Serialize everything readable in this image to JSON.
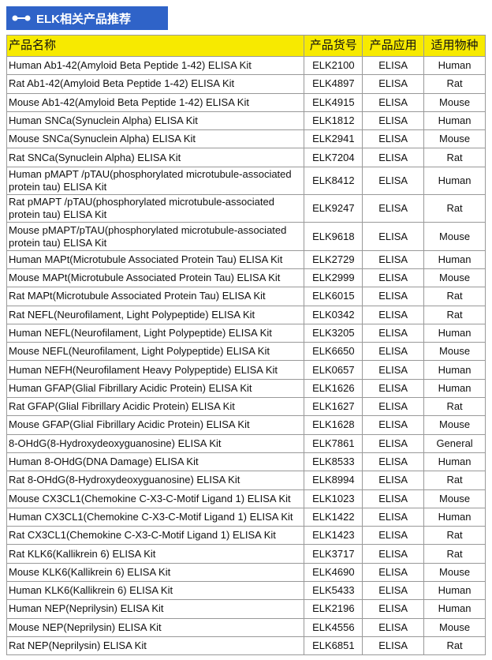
{
  "header": {
    "title": "ELK相关产品推荐"
  },
  "table": {
    "columns": [
      "产品名称",
      "产品货号",
      "产品应用",
      "适用物种"
    ],
    "rows": [
      [
        "Human Ab1-42(Amyloid Beta Peptide 1-42) ELISA Kit",
        "ELK2100",
        "ELISA",
        "Human"
      ],
      [
        "Rat Ab1-42(Amyloid Beta Peptide 1-42) ELISA Kit",
        "ELK4897",
        "ELISA",
        "Rat"
      ],
      [
        "Mouse Ab1-42(Amyloid Beta Peptide 1-42) ELISA Kit",
        "ELK4915",
        "ELISA",
        "Mouse"
      ],
      [
        "Human SNCa(Synuclein Alpha) ELISA Kit",
        "ELK1812",
        "ELISA",
        "Human"
      ],
      [
        "Mouse SNCa(Synuclein Alpha) ELISA Kit",
        "ELK2941",
        "ELISA",
        "Mouse"
      ],
      [
        "Rat SNCa(Synuclein Alpha) ELISA Kit",
        "ELK7204",
        "ELISA",
        "Rat"
      ],
      [
        "Human pMAPT /pTAU(phosphorylated microtubule-associated protein tau) ELISA Kit",
        "ELK8412",
        "ELISA",
        "Human"
      ],
      [
        "Rat pMAPT /pTAU(phosphorylated microtubule-associated protein tau) ELISA Kit",
        "ELK9247",
        "ELISA",
        "Rat"
      ],
      [
        "Mouse pMAPT/pTAU(phosphorylated microtubule-associated protein tau) ELISA Kit",
        "ELK9618",
        "ELISA",
        "Mouse"
      ],
      [
        "Human MAPt(Microtubule Associated Protein Tau) ELISA Kit",
        "ELK2729",
        "ELISA",
        "Human"
      ],
      [
        "Mouse MAPt(Microtubule Associated Protein Tau) ELISA Kit",
        "ELK2999",
        "ELISA",
        "Mouse"
      ],
      [
        "Rat MAPt(Microtubule Associated Protein Tau) ELISA Kit",
        "ELK6015",
        "ELISA",
        "Rat"
      ],
      [
        "Rat NEFL(Neurofilament, Light Polypeptide) ELISA Kit",
        "ELK0342",
        "ELISA",
        "Rat"
      ],
      [
        "Human NEFL(Neurofilament, Light Polypeptide) ELISA Kit",
        "ELK3205",
        "ELISA",
        "Human"
      ],
      [
        "Mouse NEFL(Neurofilament, Light Polypeptide) ELISA Kit",
        "ELK6650",
        "ELISA",
        "Mouse"
      ],
      [
        "Human NEFH(Neurofilament Heavy Polypeptide) ELISA Kit",
        "ELK0657",
        "ELISA",
        "Human"
      ],
      [
        "Human GFAP(Glial Fibrillary Acidic Protein) ELISA Kit",
        "ELK1626",
        "ELISA",
        "Human"
      ],
      [
        "Rat GFAP(Glial Fibrillary Acidic Protein) ELISA Kit",
        "ELK1627",
        "ELISA",
        "Rat"
      ],
      [
        "Mouse GFAP(Glial Fibrillary Acidic Protein) ELISA Kit",
        "ELK1628",
        "ELISA",
        "Mouse"
      ],
      [
        "8-OHdG(8-Hydroxydeoxyguanosine) ELISA Kit",
        "ELK7861",
        "ELISA",
        "General"
      ],
      [
        "Human 8-OHdG(DNA Damage) ELISA Kit",
        "ELK8533",
        "ELISA",
        "Human"
      ],
      [
        "Rat 8-OHdG(8-Hydroxydeoxyguanosine) ELISA Kit",
        "ELK8994",
        "ELISA",
        "Rat"
      ],
      [
        "Mouse CX3CL1(Chemokine C-X3-C-Motif Ligand 1) ELISA Kit",
        "ELK1023",
        "ELISA",
        "Mouse"
      ],
      [
        "Human CX3CL1(Chemokine C-X3-C-Motif Ligand 1) ELISA Kit",
        "ELK1422",
        "ELISA",
        "Human"
      ],
      [
        "Rat CX3CL1(Chemokine C-X3-C-Motif Ligand 1) ELISA Kit",
        "ELK1423",
        "ELISA",
        "Rat"
      ],
      [
        "Rat KLK6(Kallikrein 6) ELISA Kit",
        "ELK3717",
        "ELISA",
        "Rat"
      ],
      [
        "Mouse KLK6(Kallikrein 6) ELISA Kit",
        "ELK4690",
        "ELISA",
        "Mouse"
      ],
      [
        "Human KLK6(Kallikrein 6) ELISA Kit",
        "ELK5433",
        "ELISA",
        "Human"
      ],
      [
        "Human NEP(Neprilysin) ELISA Kit",
        "ELK2196",
        "ELISA",
        "Human"
      ],
      [
        "Mouse NEP(Neprilysin) ELISA Kit",
        "ELK4556",
        "ELISA",
        "Mouse"
      ],
      [
        "Rat NEP(Neprilysin) ELISA Kit",
        "ELK6851",
        "ELISA",
        "Rat"
      ]
    ]
  }
}
